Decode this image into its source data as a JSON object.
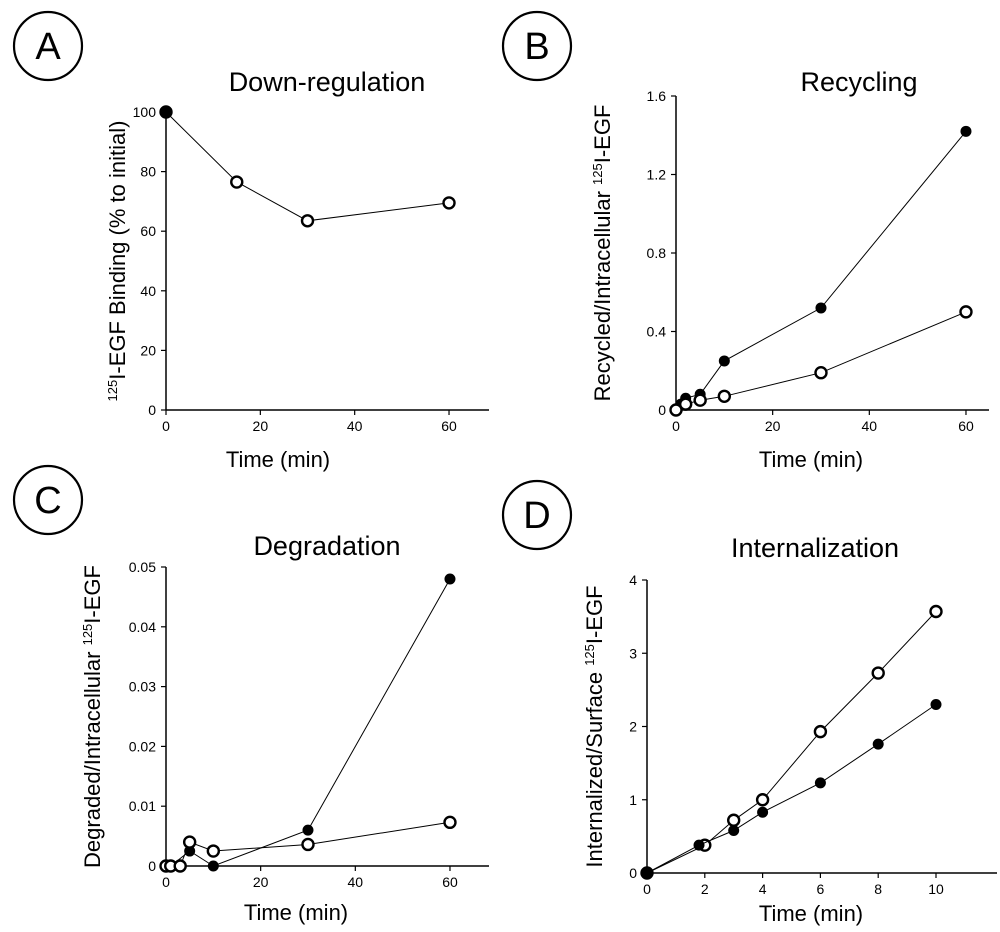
{
  "chart_data": [
    {
      "panel": "A",
      "type": "line",
      "title": "Down-regulation",
      "xlabel": "Time (min)",
      "ylabel_sup": "125",
      "ylabel_main": "I-EGF Binding (% to initial)",
      "xlim": [
        0,
        70
      ],
      "ylim": [
        0,
        100
      ],
      "x_ticks": [
        0,
        20,
        40,
        60
      ],
      "y_ticks": [
        0,
        20,
        40,
        60,
        80,
        100
      ],
      "series": [
        {
          "marker": "open",
          "points": [
            [
              0,
              100
            ],
            [
              15,
              76.5
            ],
            [
              30,
              63.5
            ],
            [
              60,
              69.5
            ]
          ]
        }
      ],
      "extra_points": [
        {
          "marker": "filled",
          "x": 0,
          "y": 100
        }
      ]
    },
    {
      "panel": "B",
      "type": "line",
      "title": "Recycling",
      "xlabel": "Time (min)",
      "ylabel_main": "Recycled/Intracellular ",
      "ylabel_sup": "125",
      "ylabel_tail": "I-EGF",
      "xlim": [
        0,
        70
      ],
      "ylim": [
        0,
        1.6
      ],
      "x_ticks": [
        0,
        20,
        40,
        60
      ],
      "y_ticks": [
        0,
        0.4,
        0.8,
        1.2,
        1.6
      ],
      "y_tick_labels": [
        "0",
        "0.4",
        "0.8",
        "1.2",
        "1.6"
      ],
      "series": [
        {
          "marker": "filled",
          "points": [
            [
              1,
              0.03
            ],
            [
              2,
              0.06
            ],
            [
              5,
              0.08
            ],
            [
              10,
              0.25
            ],
            [
              30,
              0.52
            ],
            [
              60,
              1.42
            ]
          ]
        },
        {
          "marker": "open",
          "points": [
            [
              0,
              0
            ],
            [
              2,
              0.03
            ],
            [
              5,
              0.05
            ],
            [
              10,
              0.07
            ],
            [
              30,
              0.19
            ],
            [
              60,
              0.5
            ]
          ]
        }
      ]
    },
    {
      "panel": "C",
      "type": "line",
      "title": "Degradation",
      "xlabel": "Time (min)",
      "ylabel_main": "Degraded/Intracellular ",
      "ylabel_sup": "125",
      "ylabel_tail": "I-EGF",
      "xlim": [
        0,
        70
      ],
      "ylim": [
        0,
        0.05
      ],
      "x_ticks": [
        0,
        20,
        40,
        60
      ],
      "y_ticks": [
        0,
        0.01,
        0.02,
        0.03,
        0.04,
        0.05
      ],
      "y_tick_labels": [
        "0",
        "0.01",
        "0.02",
        "0.03",
        "0.04",
        "0.05"
      ],
      "series": [
        {
          "marker": "filled",
          "points": [
            [
              1,
              0
            ],
            [
              5,
              0.0025
            ],
            [
              10,
              0
            ],
            [
              30,
              0.006
            ],
            [
              60,
              0.048
            ]
          ]
        },
        {
          "marker": "open",
          "points": [
            [
              0,
              0
            ],
            [
              1,
              0
            ],
            [
              3,
              0
            ],
            [
              5,
              0.004
            ],
            [
              10,
              0.0025
            ],
            [
              30,
              0.0036
            ],
            [
              60,
              0.0073
            ]
          ]
        }
      ]
    },
    {
      "panel": "D",
      "type": "line",
      "title": "Internalization",
      "xlabel": "Time (min)",
      "ylabel_main": "Internalized/Surface ",
      "ylabel_sup": "125",
      "ylabel_tail": "I-EGF",
      "xlim": [
        0,
        12
      ],
      "ylim": [
        0,
        4
      ],
      "x_ticks": [
        0,
        2,
        4,
        6,
        8,
        10
      ],
      "y_ticks": [
        0,
        1,
        2,
        3,
        4
      ],
      "series": [
        {
          "marker": "open",
          "points": [
            [
              0,
              0
            ],
            [
              2,
              0.38
            ],
            [
              3,
              0.72
            ],
            [
              4,
              1.0
            ],
            [
              6,
              1.93
            ],
            [
              8,
              2.73
            ],
            [
              10,
              3.57
            ]
          ]
        },
        {
          "marker": "filled",
          "points": [
            [
              0,
              0
            ],
            [
              1.8,
              0.38
            ],
            [
              3,
              0.58
            ],
            [
              4,
              0.83
            ],
            [
              6,
              1.23
            ],
            [
              8,
              1.76
            ],
            [
              10,
              2.3
            ]
          ]
        }
      ]
    }
  ]
}
